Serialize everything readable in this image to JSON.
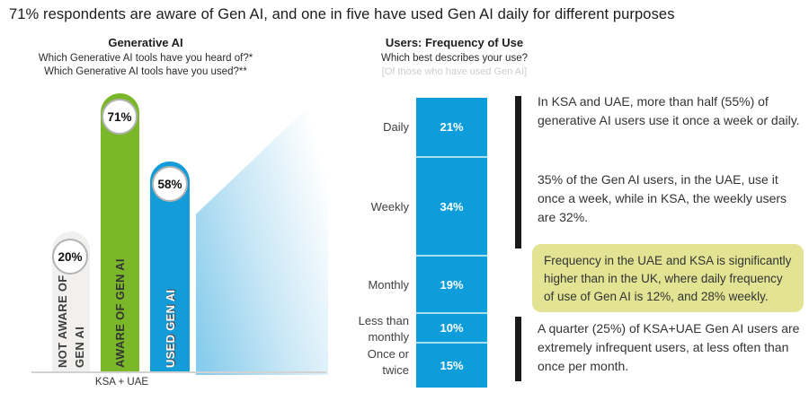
{
  "title": "71% respondents are aware of Gen AI, and one in five have used Gen AI daily for different purposes",
  "awareness_chart": {
    "title": "Generative AI",
    "subtitle1": "Which Generative AI tools have you heard of?*",
    "subtitle2": "Which Generative AI tools have you used?**",
    "axis_label": "KSA + UAE",
    "bars": [
      {
        "label": "NOT AWARE OF GEN AI",
        "lines": [
          "NOT AWARE OF",
          "GEN AI"
        ],
        "value": "20%",
        "color": "#f1f0ee"
      },
      {
        "label": "AWARE OF GEN AI",
        "value": "71%",
        "color": "#7ab82a"
      },
      {
        "label": "USED GEN AI",
        "value": "58%",
        "color": "#149cd8"
      }
    ]
  },
  "frequency_chart": {
    "title": "Users: Frequency of Use",
    "subtitle": "Which best describes your use?",
    "note": "[Of those who have used Gen AI]",
    "bar_color": "#0d9ddb",
    "segments": [
      {
        "label": "Daily",
        "value": "21%"
      },
      {
        "label": "Weekly",
        "value": "34%"
      },
      {
        "label": "Monthly",
        "value": "19%"
      },
      {
        "label": "Less than monthly",
        "value": "10%"
      },
      {
        "label": "Once or twice",
        "value": "15%"
      }
    ]
  },
  "insights": {
    "highlight_color": "#e2e493",
    "accent_color": "#1a1a1a",
    "block1": "In KSA and UAE, more than half (55%) of generative AI users use it once a week or daily.",
    "block2": "35% of the Gen AI users, in the UAE, use it once a week, while in KSA, the weekly users are 32%.",
    "highlight": "Frequency in the UAE and KSA is significantly higher than in the UK, where daily frequency of use of Gen AI is 12%, and 28% weekly.",
    "block3": "A quarter (25%) of KSA+UAE Gen AI users are extremely infrequent users, at less often than once per month."
  },
  "chart_data": [
    {
      "type": "bar",
      "title": "Generative AI",
      "subtitle": [
        "Which Generative AI tools have you heard of?*",
        "Which Generative AI tools have you used?**"
      ],
      "categories": [
        "Not aware of Gen AI",
        "Aware of Gen AI",
        "Used Gen AI"
      ],
      "values": [
        20,
        71,
        58
      ],
      "unit": "%",
      "group_label": "KSA + UAE",
      "colors": [
        "#f1f0ee",
        "#7ab82a",
        "#149cd8"
      ],
      "ylim": [
        0,
        100
      ],
      "grid": false,
      "legend": false
    },
    {
      "type": "bar",
      "stacked": true,
      "title": "Users: Frequency of Use",
      "subtitle": [
        "Which best describes your use?",
        "[Of those who have used Gen AI]"
      ],
      "categories": [
        "Daily",
        "Weekly",
        "Monthly",
        "Less than monthly",
        "Once or twice"
      ],
      "values": [
        21,
        34,
        19,
        10,
        15
      ],
      "unit": "%",
      "color": "#0d9ddb",
      "grid": false,
      "legend": false
    }
  ]
}
